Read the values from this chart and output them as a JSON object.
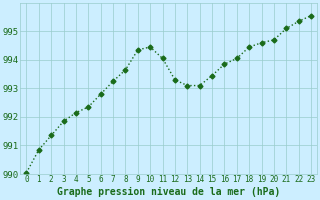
{
  "x": [
    0,
    1,
    2,
    3,
    4,
    5,
    6,
    7,
    8,
    9,
    10,
    11,
    12,
    13,
    14,
    15,
    16,
    17,
    18,
    19,
    20,
    21,
    22,
    23
  ],
  "y": [
    990.05,
    990.85,
    991.35,
    991.85,
    992.15,
    992.35,
    992.8,
    993.25,
    993.65,
    994.35,
    994.45,
    994.05,
    993.3,
    993.1,
    993.1,
    993.45,
    993.85,
    994.05,
    994.45,
    994.6,
    994.7,
    995.1,
    995.35,
    995.55
  ],
  "ylim": [
    990,
    996
  ],
  "xlim": [
    -0.5,
    23.5
  ],
  "yticks": [
    990,
    991,
    992,
    993,
    994,
    995
  ],
  "xticks": [
    0,
    1,
    2,
    3,
    4,
    5,
    6,
    7,
    8,
    9,
    10,
    11,
    12,
    13,
    14,
    15,
    16,
    17,
    18,
    19,
    20,
    21,
    22,
    23
  ],
  "line_color": "#1a6b1a",
  "marker": "D",
  "marker_size": 2.5,
  "line_width": 1.0,
  "xlabel": "Graphe pression niveau de la mer (hPa)",
  "background_color": "#cceeff",
  "grid_color": "#99cccc",
  "text_color": "#1a6b1a",
  "xlabel_fontsize": 7,
  "ytick_fontsize": 6.5,
  "xtick_fontsize": 5.5
}
